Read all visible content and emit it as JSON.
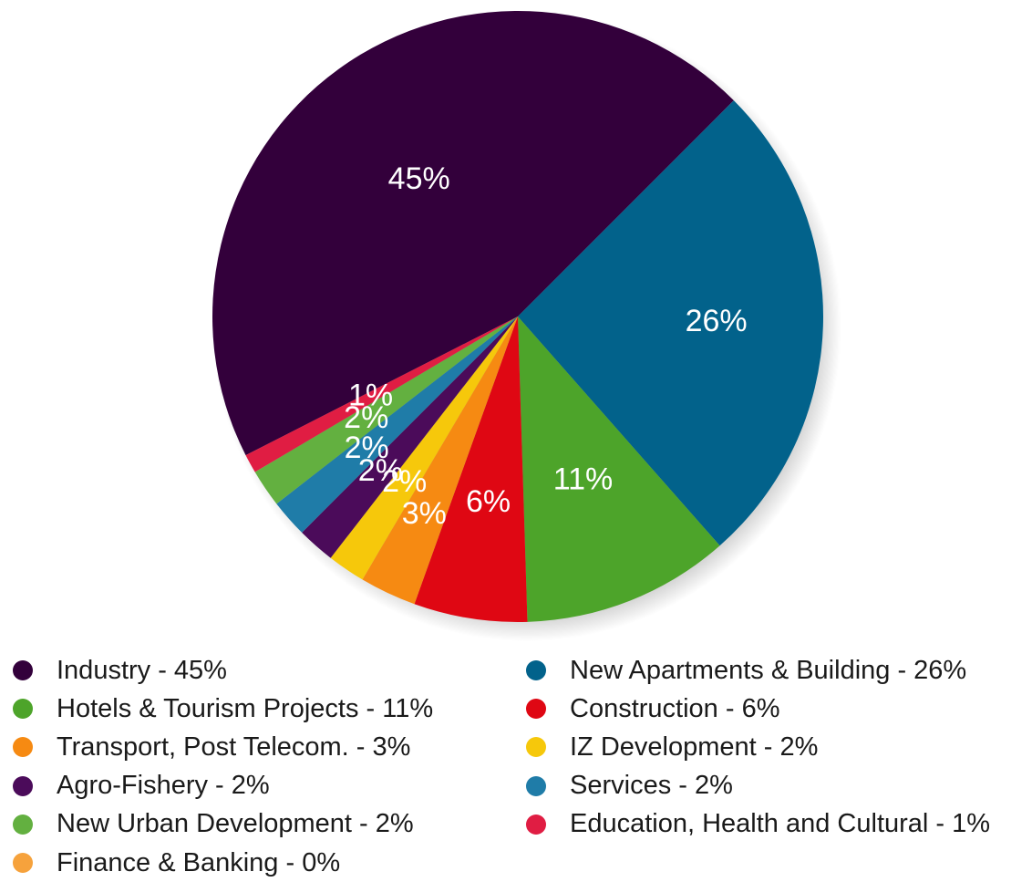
{
  "chart_data": {
    "type": "pie",
    "series": [
      {
        "name": "Industry",
        "value": 45,
        "label": "45%",
        "color": "#33003b"
      },
      {
        "name": "New Apartments & Building",
        "value": 26,
        "label": "26%",
        "color": "#02628b"
      },
      {
        "name": "Hotels & Tourism Projects",
        "value": 11,
        "label": "11%",
        "color": "#4da42a"
      },
      {
        "name": "Construction",
        "value": 6,
        "label": "6%",
        "color": "#df0713"
      },
      {
        "name": "Transport, Post Telecom.",
        "value": 3,
        "label": "3%",
        "color": "#f68a12"
      },
      {
        "name": "IZ Development",
        "value": 2,
        "label": "2%",
        "color": "#f6c80b"
      },
      {
        "name": "Agro-Fishery",
        "value": 2,
        "label": "2%",
        "color": "#4b0b5a"
      },
      {
        "name": "Services",
        "value": 2,
        "label": "2%",
        "color": "#1f7ca8"
      },
      {
        "name": "New Urban Development",
        "value": 2,
        "label": "2%",
        "color": "#63b040"
      },
      {
        "name": "Education, Health and Cultural",
        "value": 1,
        "label": "1%",
        "color": "#e01d43"
      },
      {
        "name": "Finance & Banking",
        "value": 0,
        "label": "0%",
        "color": "#f6a23c"
      }
    ]
  },
  "legend": {
    "left": [
      {
        "text": "Industry - 45%",
        "color": "#33003b"
      },
      {
        "text": "Hotels & Tourism Projects - 11%",
        "color": "#4da42a"
      },
      {
        "text": "Transport, Post Telecom. - 3%",
        "color": "#f68a12"
      },
      {
        "text": "Agro-Fishery - 2%",
        "color": "#4b0b5a"
      },
      {
        "text": "New Urban Development - 2%",
        "color": "#63b040"
      },
      {
        "text": "Finance & Banking - 0%",
        "color": "#f6a23c"
      }
    ],
    "right": [
      {
        "text": "New Apartments & Building - 26%",
        "color": "#02628b"
      },
      {
        "text": "Construction - 6%",
        "color": "#df0713"
      },
      {
        "text": "IZ Development - 2%",
        "color": "#f6c80b"
      },
      {
        "text": "Services - 2%",
        "color": "#1f7ca8"
      },
      {
        "text": "Education, Health and Cultural - 1%",
        "color": "#e01d43"
      }
    ]
  }
}
